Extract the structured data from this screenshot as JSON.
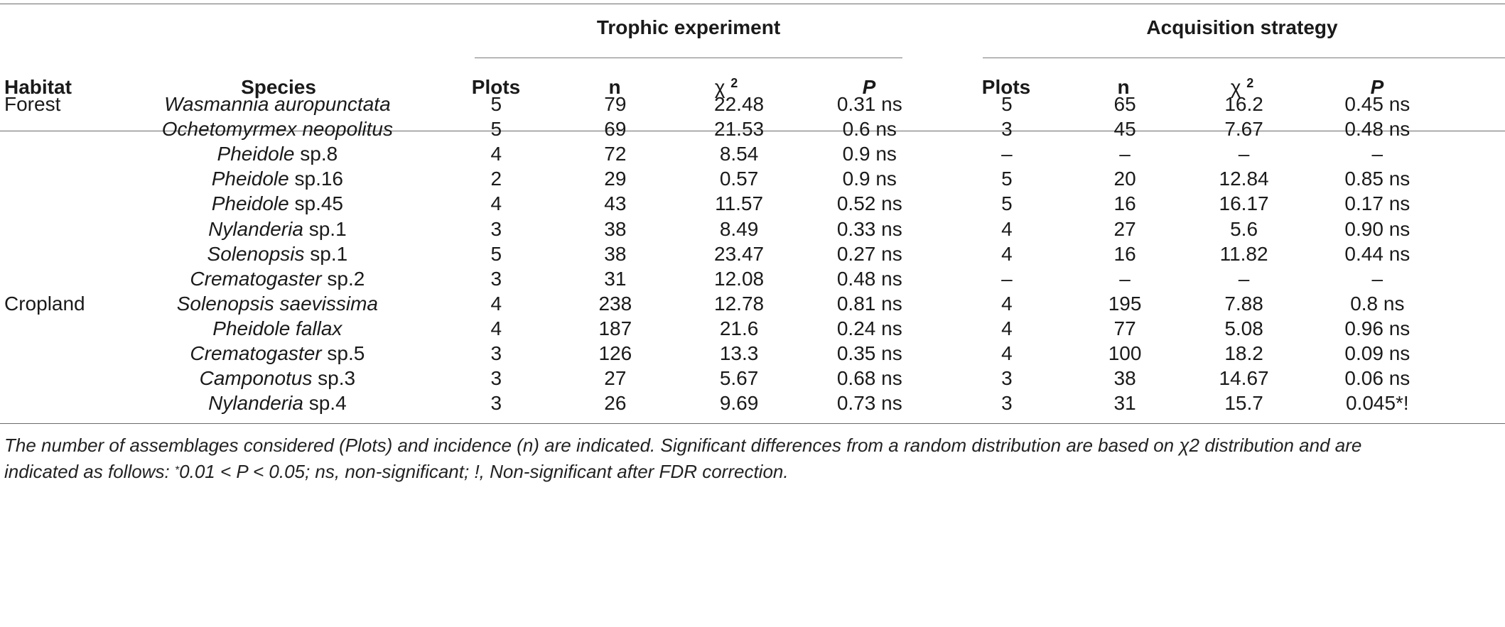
{
  "groups": {
    "trophic": "Trophic experiment",
    "acquisition": "Acquisition strategy"
  },
  "columns": {
    "habitat": "Habitat",
    "species": "Species",
    "plots": "Plots",
    "n": "n",
    "chi": "χ",
    "chi_sup": "2",
    "p": "P"
  },
  "rows": [
    {
      "habitat": "Forest",
      "genus": "Wasmannia auropunctata",
      "rest": "",
      "t_plots": "5",
      "t_n": "79",
      "t_chi": "22.48",
      "t_p": "0.31 ns",
      "a_plots": "5",
      "a_n": "65",
      "a_chi": "16.2",
      "a_p": "0.45 ns"
    },
    {
      "habitat": "",
      "genus": "Ochetomyrmex neopolitus",
      "rest": "",
      "t_plots": "5",
      "t_n": "69",
      "t_chi": "21.53",
      "t_p": "0.6 ns",
      "a_plots": "3",
      "a_n": "45",
      "a_chi": "7.67",
      "a_p": "0.48 ns"
    },
    {
      "habitat": "",
      "genus": "Pheidole",
      "rest": " sp.8",
      "t_plots": "4",
      "t_n": "72",
      "t_chi": "8.54",
      "t_p": "0.9 ns",
      "a_plots": "–",
      "a_n": "–",
      "a_chi": "–",
      "a_p": "–"
    },
    {
      "habitat": "",
      "genus": "Pheidole",
      "rest": " sp.16",
      "t_plots": "2",
      "t_n": "29",
      "t_chi": "0.57",
      "t_p": "0.9 ns",
      "a_plots": "5",
      "a_n": "20",
      "a_chi": "12.84",
      "a_p": "0.85 ns"
    },
    {
      "habitat": "",
      "genus": "Pheidole",
      "rest": " sp.45",
      "t_plots": "4",
      "t_n": "43",
      "t_chi": "11.57",
      "t_p": "0.52 ns",
      "a_plots": "5",
      "a_n": "16",
      "a_chi": "16.17",
      "a_p": "0.17 ns"
    },
    {
      "habitat": "",
      "genus": "Nylanderia",
      "rest": " sp.1",
      "t_plots": "3",
      "t_n": "38",
      "t_chi": "8.49",
      "t_p": "0.33 ns",
      "a_plots": "4",
      "a_n": "27",
      "a_chi": "5.6",
      "a_p": "0.90 ns"
    },
    {
      "habitat": "",
      "genus": "Solenopsis",
      "rest": " sp.1",
      "t_plots": "5",
      "t_n": "38",
      "t_chi": "23.47",
      "t_p": "0.27 ns",
      "a_plots": "4",
      "a_n": "16",
      "a_chi": "11.82",
      "a_p": "0.44 ns"
    },
    {
      "habitat": "",
      "genus": "Crematogaster",
      "rest": " sp.2",
      "t_plots": "3",
      "t_n": "31",
      "t_chi": "12.08",
      "t_p": "0.48 ns",
      "a_plots": "–",
      "a_n": "–",
      "a_chi": "–",
      "a_p": "–"
    },
    {
      "habitat": "Cropland",
      "genus": "Solenopsis saevissima",
      "rest": "",
      "t_plots": "4",
      "t_n": "238",
      "t_chi": "12.78",
      "t_p": "0.81 ns",
      "a_plots": "4",
      "a_n": "195",
      "a_chi": "7.88",
      "a_p": "0.8 ns"
    },
    {
      "habitat": "",
      "genus": "Pheidole fallax",
      "rest": "",
      "t_plots": "4",
      "t_n": "187",
      "t_chi": "21.6",
      "t_p": "0.24 ns",
      "a_plots": "4",
      "a_n": "77",
      "a_chi": "5.08",
      "a_p": "0.96 ns"
    },
    {
      "habitat": "",
      "genus": "Crematogaster",
      "rest": " sp.5",
      "t_plots": "3",
      "t_n": "126",
      "t_chi": "13.3",
      "t_p": "0.35 ns",
      "a_plots": "4",
      "a_n": "100",
      "a_chi": "18.2",
      "a_p": "0.09 ns"
    },
    {
      "habitat": "",
      "genus": "Camponotus",
      "rest": " sp.3",
      "t_plots": "3",
      "t_n": "27",
      "t_chi": "5.67",
      "t_p": "0.68 ns",
      "a_plots": "3",
      "a_n": "38",
      "a_chi": "14.67",
      "a_p": "0.06 ns"
    },
    {
      "habitat": "",
      "genus": "Nylanderia",
      "rest": " sp.4",
      "t_plots": "3",
      "t_n": "26",
      "t_chi": "9.69",
      "t_p": "0.73 ns",
      "a_plots": "3",
      "a_n": "31",
      "a_chi": "15.7",
      "a_p": "0.045*!"
    }
  ],
  "footnote": {
    "line1": "The number of assemblages considered (Plots) and incidence (n) are indicated. Significant differences from a random distribution are based on χ2 distribution and are",
    "line2_pre": "indicated as follows: ",
    "line2_sup": "*",
    "line2_post": "0.01 < P < 0.05; ns, non-significant; !, Non-significant after FDR correction."
  }
}
